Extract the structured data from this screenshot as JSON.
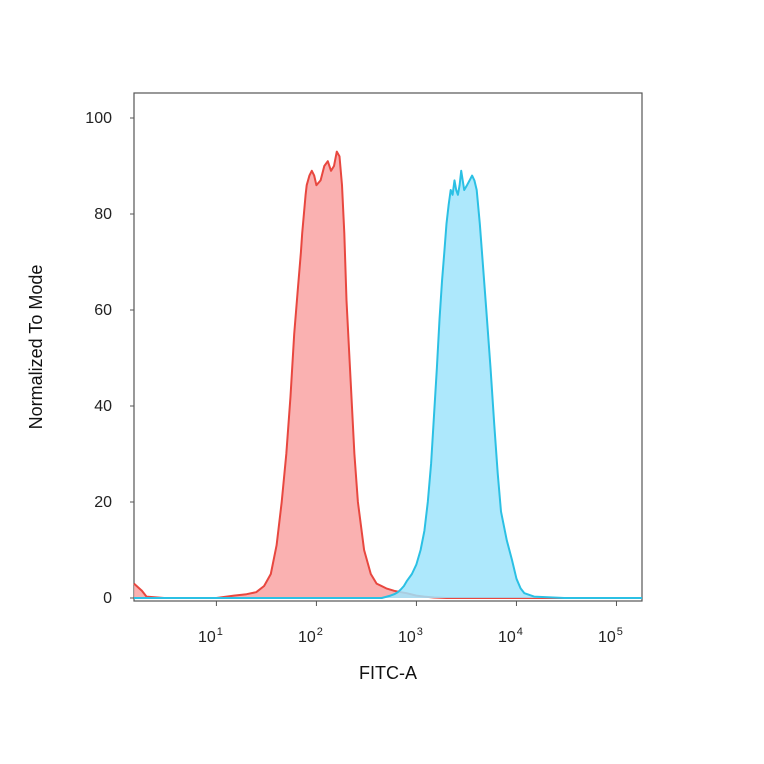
{
  "chart_data": {
    "type": "area",
    "title": "",
    "xlabel": "FITC-A",
    "ylabel": "Normalized To Mode",
    "x_scale": "log",
    "xlim": [
      1.5,
      180000
    ],
    "ylim": [
      0,
      100
    ],
    "grid": false,
    "legend": "none",
    "yticks": [
      {
        "value": 0,
        "label": "0"
      },
      {
        "value": 20,
        "label": "20"
      },
      {
        "value": 40,
        "label": "40"
      },
      {
        "value": 60,
        "label": "60"
      },
      {
        "value": 80,
        "label": "80"
      },
      {
        "value": 100,
        "label": "100"
      }
    ],
    "xticks": [
      {
        "value": 10,
        "base": "10",
        "exp": "1"
      },
      {
        "value": 100,
        "base": "10",
        "exp": "2"
      },
      {
        "value": 1000,
        "base": "10",
        "exp": "3"
      },
      {
        "value": 10000,
        "base": "10",
        "exp": "4"
      },
      {
        "value": 100000,
        "base": "10",
        "exp": "5"
      }
    ],
    "series": [
      {
        "stroke": "#e8473f",
        "fill": "#f9a3a3",
        "x": [
          1.5,
          1.8,
          2,
          3,
          10,
          15,
          20,
          25,
          30,
          35,
          40,
          45,
          50,
          55,
          60,
          65,
          70,
          72,
          75,
          78,
          80,
          85,
          90,
          95,
          100,
          110,
          120,
          130,
          140,
          150,
          160,
          170,
          180,
          190,
          200,
          220,
          240,
          260,
          300,
          350,
          400,
          500,
          600,
          700,
          800,
          1000,
          1200,
          1500,
          2000,
          3000,
          5000,
          10000,
          30000,
          180000
        ],
        "y": [
          3,
          1.5,
          0.3,
          0,
          0,
          0.5,
          0.8,
          1.2,
          2.5,
          5,
          11,
          20,
          30,
          42,
          55,
          64,
          72,
          76,
          80,
          84,
          86,
          88,
          89,
          88,
          86,
          87,
          90,
          91,
          89,
          90,
          93,
          92,
          86,
          76,
          62,
          45,
          30,
          20,
          10,
          5,
          3,
          2,
          1.5,
          1.2,
          1,
          0.5,
          0.3,
          0.1,
          0,
          0,
          0,
          0,
          0,
          0
        ]
      },
      {
        "stroke": "#2bc0e4",
        "fill": "#9fe4fb",
        "x": [
          1.5,
          100,
          300,
          450,
          550,
          600,
          650,
          700,
          750,
          800,
          900,
          1000,
          1100,
          1200,
          1300,
          1400,
          1500,
          1600,
          1700,
          1800,
          1900,
          2000,
          2100,
          2200,
          2300,
          2400,
          2500,
          2600,
          2700,
          2800,
          2900,
          3000,
          3200,
          3400,
          3600,
          3800,
          4000,
          4300,
          4600,
          5000,
          5500,
          6000,
          6500,
          7000,
          8000,
          9000,
          10000,
          11000,
          12000,
          15000,
          30000,
          180000
        ],
        "y": [
          0,
          0,
          0,
          0,
          0.5,
          0.8,
          1.2,
          1.8,
          2.5,
          3.5,
          5,
          7,
          10,
          14,
          20,
          28,
          38,
          48,
          58,
          66,
          72,
          78,
          82,
          85,
          84,
          87,
          85,
          84,
          86,
          89,
          87,
          85,
          86,
          87,
          88,
          87,
          85,
          78,
          70,
          60,
          48,
          36,
          26,
          18,
          12,
          8,
          4,
          2,
          1,
          0.3,
          0,
          0
        ]
      }
    ]
  }
}
